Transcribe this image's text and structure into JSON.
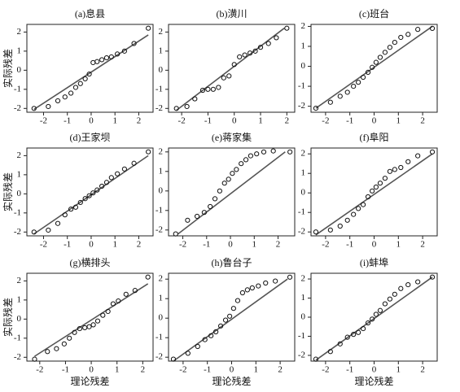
{
  "chart_data": [
    {
      "type": "scatter",
      "title": "(a)息县",
      "ylabel": "实际残差",
      "x": [
        -2.4,
        -1.8,
        -1.4,
        -1.1,
        -0.85,
        -0.65,
        -0.45,
        -0.25,
        -0.08,
        0.08,
        0.25,
        0.45,
        0.65,
        0.85,
        1.1,
        1.4,
        1.8,
        2.4
      ],
      "y": [
        -2.0,
        -1.9,
        -1.6,
        -1.4,
        -1.2,
        -0.9,
        -0.7,
        -0.45,
        -0.2,
        0.4,
        0.45,
        0.55,
        0.65,
        0.7,
        0.85,
        1.0,
        1.4,
        2.2
      ],
      "line_x": [
        -2.4,
        2.4
      ],
      "line_y": [
        -2.05,
        1.85
      ],
      "xlim": [
        -2.7,
        2.6
      ],
      "ylim": [
        -2.2,
        2.4
      ],
      "xticks": [
        -2,
        -1,
        0,
        1,
        2
      ],
      "yticks": [
        -2,
        -1,
        0,
        1,
        2
      ]
    },
    {
      "type": "scatter",
      "title": "(b)潢川",
      "x": [
        -2.2,
        -1.8,
        -1.5,
        -1.2,
        -1.0,
        -0.8,
        -0.6,
        -0.4,
        -0.2,
        0,
        0.2,
        0.4,
        0.6,
        0.8,
        1.0,
        1.3,
        1.6,
        2.0
      ],
      "y": [
        -2.0,
        -1.9,
        -1.5,
        -1.05,
        -1.0,
        -1.0,
        -0.9,
        -0.4,
        -0.3,
        0.3,
        0.7,
        0.8,
        0.9,
        1.0,
        1.2,
        1.4,
        1.7,
        2.2
      ],
      "line_x": [
        -2.2,
        1.9
      ],
      "line_y": [
        -2.1,
        2.2
      ],
      "xlim": [
        -2.5,
        2.3
      ],
      "ylim": [
        -2.2,
        2.4
      ],
      "xticks": [
        -2,
        -1,
        0,
        1,
        2
      ],
      "yticks": [
        -2,
        -1,
        0,
        1,
        2
      ]
    },
    {
      "type": "scatter",
      "title": "(c)班台",
      "x": [
        -2.4,
        -1.8,
        -1.4,
        -1.1,
        -0.85,
        -0.65,
        -0.45,
        -0.25,
        -0.08,
        0.08,
        0.25,
        0.45,
        0.65,
        0.85,
        1.1,
        1.4,
        1.8,
        2.4
      ],
      "y": [
        -2.1,
        -1.8,
        -1.5,
        -1.3,
        -1.0,
        -0.8,
        -0.55,
        -0.3,
        -0.05,
        0.2,
        0.45,
        0.7,
        0.95,
        1.2,
        1.45,
        1.6,
        1.85,
        1.9
      ],
      "line_x": [
        -2.4,
        2.4
      ],
      "line_y": [
        -2.1,
        2.0
      ],
      "xlim": [
        -2.6,
        2.6
      ],
      "ylim": [
        -2.3,
        2.1
      ],
      "xticks": [
        -2,
        -1,
        0,
        1,
        2
      ],
      "yticks": [
        -2,
        -1,
        0,
        1,
        2
      ]
    },
    {
      "type": "scatter",
      "title": "(d)王家坝",
      "ylabel": "实际残差",
      "x": [
        -2.4,
        -1.8,
        -1.4,
        -1.1,
        -0.85,
        -0.65,
        -0.45,
        -0.25,
        -0.08,
        0.08,
        0.25,
        0.45,
        0.65,
        0.85,
        1.1,
        1.4,
        1.8,
        2.4
      ],
      "y": [
        -2.0,
        -1.9,
        -1.55,
        -1.1,
        -0.8,
        -0.7,
        -0.45,
        -0.25,
        -0.1,
        0.05,
        0.2,
        0.4,
        0.6,
        0.85,
        1.05,
        1.3,
        1.6,
        2.2
      ],
      "line_x": [
        -2.4,
        2.4
      ],
      "line_y": [
        -2.1,
        2.0
      ],
      "xlim": [
        -2.7,
        2.6
      ],
      "ylim": [
        -2.2,
        2.4
      ],
      "xticks": [
        -2,
        -1,
        0,
        1,
        2
      ],
      "yticks": [
        -2,
        -1,
        0,
        1,
        2
      ]
    },
    {
      "type": "scatter",
      "title": "(e)蒋家集",
      "x": [
        -2.3,
        -1.8,
        -1.4,
        -1.1,
        -0.85,
        -0.65,
        -0.45,
        -0.25,
        -0.08,
        0.08,
        0.25,
        0.45,
        0.65,
        0.85,
        1.1,
        1.4,
        1.8,
        2.5
      ],
      "y": [
        -2.2,
        -1.5,
        -1.3,
        -1.1,
        -0.8,
        -0.4,
        0.0,
        0.4,
        0.6,
        0.9,
        1.1,
        1.4,
        1.6,
        1.8,
        1.9,
        2.0,
        2.05,
        2.0
      ],
      "line_x": [
        -2.2,
        2.3
      ],
      "line_y": [
        -2.2,
        2.0
      ],
      "xlim": [
        -2.6,
        2.7
      ],
      "ylim": [
        -2.3,
        2.2
      ],
      "xticks": [
        -2,
        -1,
        0,
        1,
        2
      ],
      "yticks": [
        -2,
        -1,
        0,
        1,
        2
      ]
    },
    {
      "type": "scatter",
      "title": "(f)阜阳",
      "x": [
        -2.4,
        -1.8,
        -1.4,
        -1.1,
        -0.85,
        -0.65,
        -0.45,
        -0.25,
        -0.08,
        0.08,
        0.25,
        0.45,
        0.65,
        0.85,
        1.1,
        1.4,
        1.8,
        2.4
      ],
      "y": [
        -2.0,
        -1.9,
        -1.7,
        -1.4,
        -1.1,
        -0.8,
        -0.6,
        -0.2,
        0.1,
        0.3,
        0.5,
        0.75,
        1.1,
        1.2,
        1.3,
        1.6,
        1.9,
        2.1
      ],
      "line_x": [
        -2.4,
        2.4
      ],
      "line_y": [
        -2.15,
        2.0
      ],
      "xlim": [
        -2.6,
        2.6
      ],
      "ylim": [
        -2.2,
        2.3
      ],
      "xticks": [
        -2,
        -1,
        0,
        1,
        2
      ],
      "yticks": [
        -2,
        -1,
        0,
        1,
        2
      ]
    },
    {
      "type": "scatter",
      "title": "(g)横排头",
      "ylabel": "实际残差",
      "xlabel": "理论残差",
      "x": [
        -2.2,
        -1.7,
        -1.35,
        -1.05,
        -0.85,
        -0.65,
        -0.45,
        -0.25,
        -0.08,
        0.08,
        0.25,
        0.45,
        0.65,
        0.85,
        1.05,
        1.35,
        1.7,
        2.2
      ],
      "y": [
        -2.1,
        -1.7,
        -1.55,
        -1.3,
        -1.0,
        -0.7,
        -0.5,
        -0.45,
        -0.4,
        -0.3,
        -0.1,
        0.2,
        0.4,
        0.8,
        0.95,
        1.3,
        1.5,
        2.2
      ],
      "line_x": [
        -2.2,
        2.2
      ],
      "line_y": [
        -1.95,
        1.85
      ],
      "xlim": [
        -2.5,
        2.4
      ],
      "ylim": [
        -2.2,
        2.4
      ],
      "xticks": [
        -2,
        -1,
        0,
        1,
        2
      ],
      "yticks": [
        -2,
        -1,
        0,
        1,
        2
      ]
    },
    {
      "type": "scatter",
      "title": "(h)鲁台子",
      "xlabel": "理论残差",
      "x": [
        -2.4,
        -1.8,
        -1.4,
        -1.1,
        -0.85,
        -0.65,
        -0.45,
        -0.25,
        -0.08,
        0.08,
        0.25,
        0.45,
        0.65,
        0.85,
        1.1,
        1.4,
        1.8,
        2.4
      ],
      "y": [
        -2.1,
        -1.8,
        -1.45,
        -1.1,
        -0.9,
        -0.7,
        -0.4,
        -0.1,
        0.1,
        0.5,
        0.9,
        1.3,
        1.45,
        1.55,
        1.65,
        1.8,
        1.9,
        2.1
      ],
      "line_x": [
        -2.4,
        2.3
      ],
      "line_y": [
        -2.2,
        2.0
      ],
      "xlim": [
        -2.6,
        2.6
      ],
      "ylim": [
        -2.2,
        2.3
      ],
      "xticks": [
        -2,
        -1,
        0,
        1,
        2
      ],
      "yticks": [
        -2,
        -1,
        0,
        1,
        2
      ]
    },
    {
      "type": "scatter",
      "title": "(i)蚌埠",
      "xlabel": "理论残差",
      "x": [
        -2.4,
        -1.8,
        -1.4,
        -1.1,
        -0.85,
        -0.65,
        -0.45,
        -0.25,
        -0.08,
        0.08,
        0.25,
        0.45,
        0.65,
        0.85,
        1.1,
        1.4,
        1.8,
        2.4
      ],
      "y": [
        -2.2,
        -1.8,
        -1.4,
        -1.05,
        -0.9,
        -0.8,
        -0.6,
        -0.3,
        -0.1,
        0.15,
        0.35,
        0.7,
        0.95,
        1.2,
        1.5,
        1.7,
        1.85,
        2.1
      ],
      "line_x": [
        -2.4,
        2.4
      ],
      "line_y": [
        -2.25,
        2.1
      ],
      "xlim": [
        -2.6,
        2.6
      ],
      "ylim": [
        -2.3,
        2.3
      ],
      "xticks": [
        -2,
        -1,
        0,
        1,
        2
      ],
      "yticks": [
        -2,
        -1,
        0,
        1,
        2
      ]
    }
  ]
}
